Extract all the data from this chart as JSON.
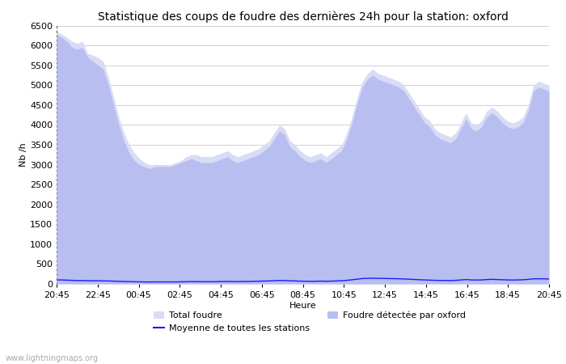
{
  "title": "Statistique des coups de foudre des dernières 24h pour la station: oxford",
  "xlabel": "Heure",
  "ylabel": "Nb /h",
  "ylim": [
    0,
    6500
  ],
  "yticks": [
    0,
    500,
    1000,
    1500,
    2000,
    2500,
    3000,
    3500,
    4000,
    4500,
    5000,
    5500,
    6000,
    6500
  ],
  "x_labels_display": [
    "20:45",
    "22:45",
    "00:45",
    "02:45",
    "04:45",
    "06:45",
    "08:45",
    "10:45",
    "12:45",
    "14:45",
    "16:45",
    "18:45",
    "20:45"
  ],
  "total_foudre": [
    6350,
    6280,
    6200,
    6100,
    6050,
    6100,
    5800,
    5750,
    5700,
    5600,
    5200,
    4700,
    4200,
    3800,
    3500,
    3300,
    3150,
    3050,
    3000,
    3000,
    3000,
    3000,
    3000,
    3050,
    3100,
    3200,
    3250,
    3250,
    3200,
    3200,
    3200,
    3250,
    3300,
    3350,
    3250,
    3200,
    3250,
    3300,
    3350,
    3400,
    3500,
    3600,
    3800,
    4000,
    3900,
    3600,
    3500,
    3350,
    3250,
    3200,
    3250,
    3300,
    3200,
    3300,
    3400,
    3500,
    3800,
    4200,
    4700,
    5100,
    5300,
    5400,
    5300,
    5250,
    5200,
    5150,
    5100,
    5000,
    4800,
    4600,
    4400,
    4200,
    4100,
    3900,
    3800,
    3750,
    3700,
    3800,
    4050,
    4300,
    4050,
    4000,
    4100,
    4350,
    4450,
    4350,
    4200,
    4100,
    4050,
    4100,
    4200,
    4500,
    5000,
    5100,
    5050,
    5000
  ],
  "oxford_foudre": [
    6280,
    6200,
    6100,
    5950,
    5900,
    5950,
    5700,
    5600,
    5500,
    5400,
    5000,
    4500,
    4000,
    3600,
    3300,
    3100,
    3000,
    2950,
    2900,
    2950,
    2950,
    2950,
    2950,
    3000,
    3050,
    3100,
    3150,
    3100,
    3050,
    3050,
    3050,
    3100,
    3150,
    3200,
    3100,
    3050,
    3100,
    3150,
    3200,
    3250,
    3350,
    3450,
    3650,
    3850,
    3750,
    3450,
    3350,
    3200,
    3100,
    3050,
    3100,
    3150,
    3050,
    3150,
    3250,
    3350,
    3650,
    4050,
    4550,
    4950,
    5150,
    5250,
    5150,
    5100,
    5050,
    5000,
    4950,
    4850,
    4650,
    4450,
    4250,
    4050,
    3950,
    3750,
    3650,
    3600,
    3550,
    3650,
    3900,
    4150,
    3900,
    3850,
    3950,
    4200,
    4300,
    4200,
    4050,
    3950,
    3900,
    3950,
    4050,
    4350,
    4850,
    4950,
    4900,
    4850
  ],
  "moyenne": [
    100,
    100,
    95,
    90,
    85,
    85,
    80,
    80,
    80,
    75,
    75,
    70,
    65,
    60,
    58,
    55,
    52,
    50,
    48,
    50,
    50,
    50,
    50,
    50,
    52,
    55,
    58,
    58,
    55,
    55,
    55,
    58,
    60,
    62,
    60,
    58,
    60,
    62,
    65,
    68,
    72,
    75,
    82,
    88,
    85,
    78,
    75,
    70,
    67,
    65,
    67,
    70,
    67,
    70,
    75,
    80,
    90,
    105,
    120,
    135,
    140,
    145,
    140,
    138,
    135,
    132,
    130,
    125,
    118,
    112,
    105,
    100,
    95,
    90,
    88,
    87,
    85,
    90,
    100,
    110,
    100,
    98,
    100,
    110,
    115,
    110,
    105,
    100,
    98,
    100,
    105,
    115,
    128,
    130,
    128,
    125
  ],
  "total_foudre_color": "#d8dcf5",
  "oxford_foudre_color": "#b8bef0",
  "moyenne_color": "#1a1aff",
  "background_color": "#ffffff",
  "grid_color": "#c8c8c8",
  "watermark": "www.lightningmaps.org",
  "legend_total": "Total foudre",
  "legend_oxford": "Foudre détectée par oxford",
  "legend_moyenne": "Moyenne de toutes les stations",
  "title_fontsize": 10,
  "axis_fontsize": 8,
  "tick_fontsize": 8
}
